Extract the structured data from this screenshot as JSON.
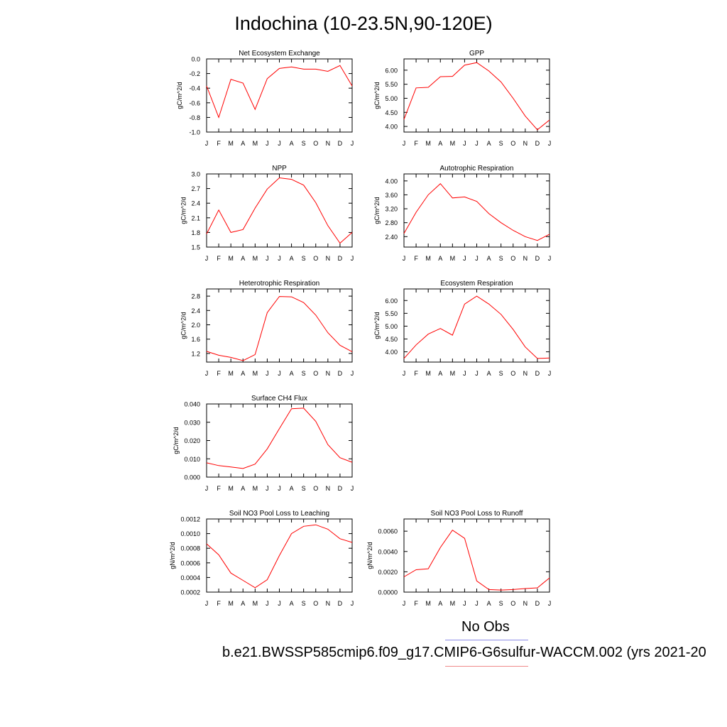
{
  "title": "Indochina (10-23.5N,90-120E)",
  "legend": {
    "no_obs": "No Obs",
    "case": "b.e21.BWSSP585cmip6.f09_g17.CMIP6-G6sulfur-WACCM.002 (yrs 2021-20",
    "obs_color": "#8a8ae6",
    "case_color": "#f08a8a"
  },
  "colors": {
    "line": "#ff0000",
    "axis": "#000000"
  },
  "chart_data": [
    {
      "type": "line",
      "title": "Net Ecosystem Exchange",
      "ylabel": "gC/m^2/d",
      "x": [
        "J",
        "F",
        "M",
        "A",
        "M",
        "J",
        "J",
        "A",
        "S",
        "O",
        "N",
        "D",
        "J"
      ],
      "ylim": [
        -1.0,
        0.0
      ],
      "yticks": [
        -1.0,
        -0.8,
        -0.6,
        -0.4,
        -0.2,
        0.0
      ],
      "yticklabels": [
        "-1.0",
        "-0.8",
        "-0.6",
        "-0.4",
        "-0.2",
        "0.0"
      ],
      "values": [
        -0.37,
        -0.8,
        -0.28,
        -0.33,
        -0.69,
        -0.27,
        -0.13,
        -0.11,
        -0.14,
        -0.14,
        -0.17,
        -0.09,
        -0.37
      ]
    },
    {
      "type": "line",
      "title": "GPP",
      "ylabel": "gC/m^2/d",
      "x": [
        "J",
        "F",
        "M",
        "A",
        "M",
        "J",
        "J",
        "A",
        "S",
        "O",
        "N",
        "D",
        "J"
      ],
      "ylim": [
        3.8,
        6.4
      ],
      "yticks": [
        4.0,
        4.5,
        5.0,
        5.5,
        6.0
      ],
      "yticklabels": [
        "4.00",
        "4.50",
        "5.00",
        "5.50",
        "6.00"
      ],
      "values": [
        4.25,
        5.37,
        5.39,
        5.77,
        5.78,
        6.18,
        6.27,
        5.97,
        5.58,
        5.0,
        4.37,
        3.88,
        4.23
      ]
    },
    {
      "type": "line",
      "title": "NPP",
      "ylabel": "gC/m^2/d",
      "x": [
        "J",
        "F",
        "M",
        "A",
        "M",
        "J",
        "J",
        "A",
        "S",
        "O",
        "N",
        "D",
        "J"
      ],
      "ylim": [
        1.5,
        3.0
      ],
      "yticks": [
        1.5,
        1.8,
        2.1,
        2.4,
        2.7,
        3.0
      ],
      "yticklabels": [
        "1.5",
        "1.8",
        "2.1",
        "2.4",
        "2.7",
        "3.0"
      ],
      "values": [
        1.77,
        2.26,
        1.8,
        1.86,
        2.3,
        2.69,
        2.92,
        2.89,
        2.77,
        2.41,
        1.94,
        1.58,
        1.8
      ]
    },
    {
      "type": "line",
      "title": "Autotrophic Respiration",
      "ylabel": "gC/m^2/d",
      "x": [
        "J",
        "F",
        "M",
        "A",
        "M",
        "J",
        "J",
        "A",
        "S",
        "O",
        "N",
        "D",
        "J"
      ],
      "ylim": [
        2.1,
        4.2
      ],
      "yticks": [
        2.4,
        2.8,
        3.2,
        3.6,
        4.0
      ],
      "yticklabels": [
        "2.40",
        "2.80",
        "3.20",
        "3.60",
        "4.00"
      ],
      "values": [
        2.49,
        3.1,
        3.6,
        3.92,
        3.51,
        3.54,
        3.41,
        3.06,
        2.8,
        2.58,
        2.4,
        2.29,
        2.47
      ]
    },
    {
      "type": "line",
      "title": "Heterotrophic Respiration",
      "ylabel": "gC/m^2/d",
      "x": [
        "J",
        "F",
        "M",
        "A",
        "M",
        "J",
        "J",
        "A",
        "S",
        "O",
        "N",
        "D",
        "J"
      ],
      "ylim": [
        0.96,
        3.0
      ],
      "yticks": [
        1.2,
        1.6,
        2.0,
        2.4,
        2.8
      ],
      "yticklabels": [
        "1.2",
        "1.6",
        "2.0",
        "2.4",
        "2.8"
      ],
      "values": [
        1.26,
        1.15,
        1.09,
        1.0,
        1.17,
        2.34,
        2.79,
        2.78,
        2.62,
        2.27,
        1.78,
        1.43,
        1.25
      ]
    },
    {
      "type": "line",
      "title": "Ecosystem Respiration",
      "ylabel": "gC/m^2/d",
      "x": [
        "J",
        "F",
        "M",
        "A",
        "M",
        "J",
        "J",
        "A",
        "S",
        "O",
        "N",
        "D",
        "J"
      ],
      "ylim": [
        3.6,
        6.45
      ],
      "yticks": [
        4.0,
        4.5,
        5.0,
        5.5,
        6.0
      ],
      "yticklabels": [
        "4.00",
        "4.50",
        "5.00",
        "5.50",
        "6.00"
      ],
      "values": [
        3.74,
        4.27,
        4.69,
        4.91,
        4.65,
        5.86,
        6.17,
        5.86,
        5.46,
        4.87,
        4.19,
        3.74,
        3.76
      ]
    },
    {
      "type": "line",
      "title": "Surface CH4 Flux",
      "ylabel": "gC/m^2/d",
      "x": [
        "J",
        "F",
        "M",
        "A",
        "M",
        "J",
        "J",
        "A",
        "S",
        "O",
        "N",
        "D",
        "J"
      ],
      "ylim": [
        0.0,
        0.04
      ],
      "yticks": [
        0.0,
        0.01,
        0.02,
        0.03,
        0.04
      ],
      "yticklabels": [
        "0.000",
        "0.010",
        "0.020",
        "0.030",
        "0.040"
      ],
      "values": [
        0.0078,
        0.0063,
        0.0055,
        0.0047,
        0.0071,
        0.0154,
        0.0265,
        0.0374,
        0.0377,
        0.0305,
        0.0178,
        0.0106,
        0.0081
      ]
    },
    {
      "type": "line",
      "title": "Soil NO3 Pool Loss to Leaching",
      "ylabel": "gN/m^2/d",
      "x": [
        "J",
        "F",
        "M",
        "A",
        "M",
        "J",
        "J",
        "A",
        "S",
        "O",
        "N",
        "D",
        "J"
      ],
      "ylim": [
        0.0002,
        0.0012
      ],
      "yticks": [
        0.0002,
        0.0004,
        0.0006,
        0.0008,
        0.001,
        0.0012
      ],
      "yticklabels": [
        "0.0002",
        "0.0004",
        "0.0006",
        "0.0008",
        "0.0010",
        "0.0012"
      ],
      "values": [
        0.00086,
        0.00071,
        0.00046,
        0.00036,
        0.00026,
        0.00037,
        0.0007,
        0.001,
        0.0011,
        0.00112,
        0.00106,
        0.00093,
        0.00088
      ]
    },
    {
      "type": "line",
      "title": "Soil NO3 Pool Loss to Runoff",
      "ylabel": "gN/m^2/d",
      "x": [
        "J",
        "F",
        "M",
        "A",
        "M",
        "J",
        "J",
        "A",
        "S",
        "O",
        "N",
        "D",
        "J"
      ],
      "ylim": [
        0.0,
        0.0072
      ],
      "yticks": [
        0.0,
        0.002,
        0.004,
        0.006
      ],
      "yticklabels": [
        "0.0000",
        "0.0020",
        "0.0040",
        "0.0060"
      ],
      "values": [
        0.0015,
        0.0022,
        0.0023,
        0.0044,
        0.0061,
        0.0053,
        0.0011,
        0.00025,
        0.0002,
        0.00025,
        0.00035,
        0.00042,
        0.0014
      ]
    }
  ]
}
